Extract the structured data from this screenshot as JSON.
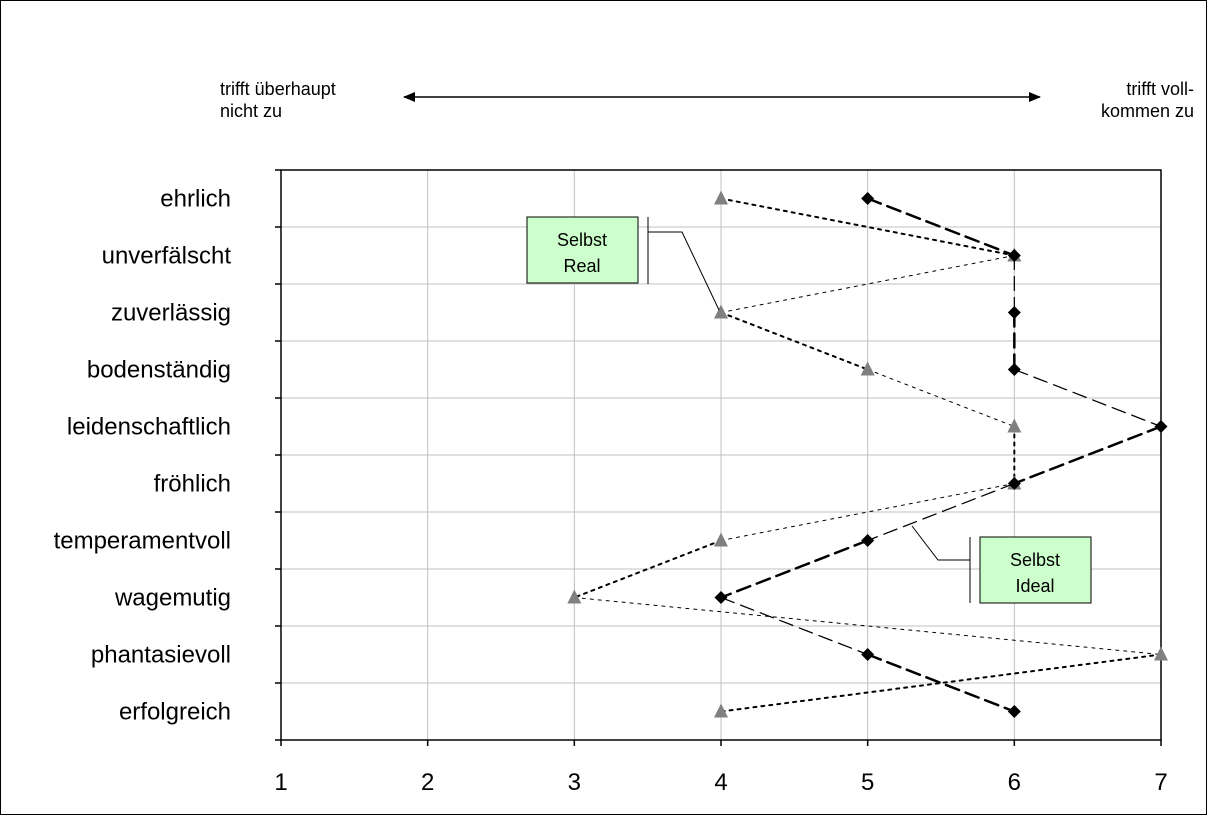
{
  "chart_data": {
    "type": "line",
    "orientation": "horizontal-profile",
    "title": "",
    "xlabel": "",
    "ylabel": "",
    "x_ticks": [
      "1",
      "2",
      "3",
      "4",
      "5",
      "6",
      "7"
    ],
    "xlim": [
      1,
      7
    ],
    "grid": true,
    "categories": [
      "ehrlich",
      "unverfälscht",
      "zuverlässig",
      "bodenständig",
      "leidenschaftlich",
      "fröhlich",
      "temperamentvoll",
      "wagemutig",
      "phantasievoll",
      "erfolgreich"
    ],
    "series": [
      {
        "name": "Selbst Real",
        "marker": "triangle",
        "color": "#808080",
        "values": [
          4,
          6,
          4,
          5,
          6,
          6,
          4,
          3,
          7,
          4
        ]
      },
      {
        "name": "Selbst Ideal",
        "marker": "diamond",
        "color": "#000000",
        "values": [
          5,
          6,
          6,
          6,
          7,
          6,
          5,
          4,
          5,
          6
        ]
      }
    ],
    "scale_left_label": "trifft überhaupt nicht zu",
    "scale_right_label": "trifft voll-kommen zu",
    "label_box_color": "#ccffcc"
  },
  "annotations": {
    "left_line1": "trifft überhaupt",
    "left_line2": "nicht zu",
    "right_line1": "trifft voll-",
    "right_line2": "kommen zu",
    "real_line1": "Selbst",
    "real_line2": "Real",
    "ideal_line1": "Selbst",
    "ideal_line2": "Ideal"
  }
}
